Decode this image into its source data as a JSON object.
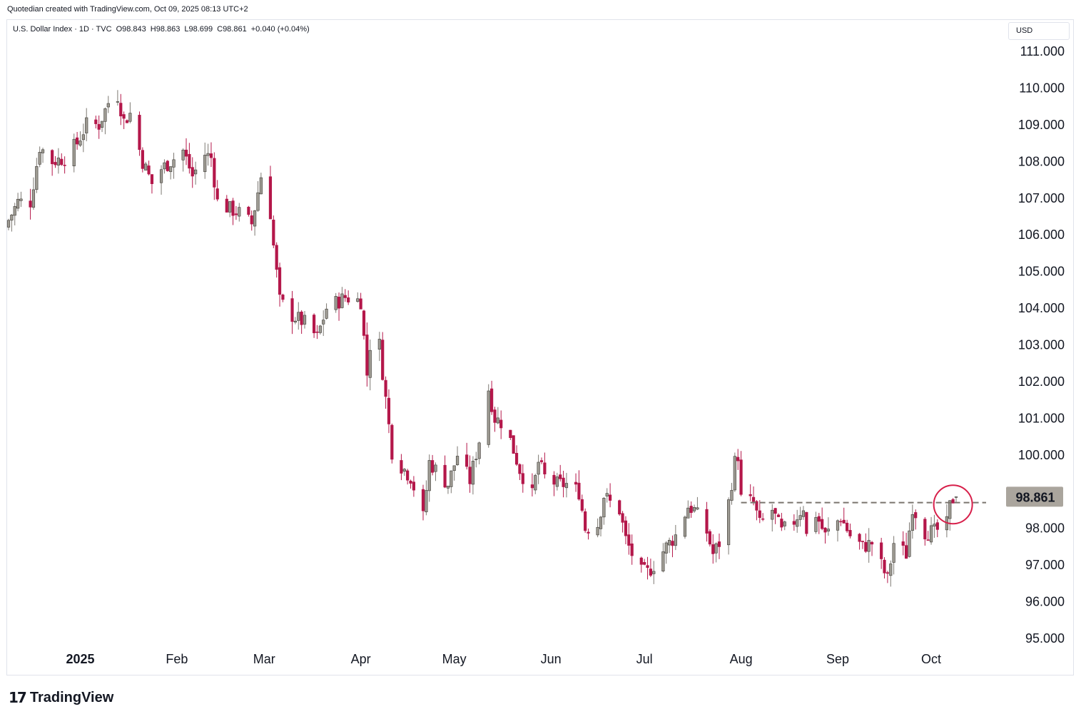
{
  "caption": "Quotedian created with TradingView.com, Oct 09, 2025 08:13 UTC+2",
  "legend": {
    "symbol": "U.S. Dollar Index · 1D · TVC",
    "open": "O98.843",
    "high": "H98.863",
    "low": "L98.699",
    "close": "C98.861",
    "change": "+0.040 (+0.04%)"
  },
  "currency": "USD",
  "logo": {
    "mark": "17",
    "name": "TradingView"
  },
  "colors": {
    "up": "#9e9b93",
    "down": "#b4174a",
    "annotation": "#d71f4a",
    "resistance": "#7a756e",
    "price_label_bg": "#aaa59d"
  },
  "chart_data": {
    "type": "candlestick",
    "y_ticks": [
      95,
      96,
      97,
      98,
      100,
      101,
      102,
      103,
      104,
      105,
      106,
      107,
      108,
      109,
      110,
      111
    ],
    "y_tick_labels": [
      "95.000",
      "96.000",
      "97.000",
      "98.000",
      "100.000",
      "101.000",
      "102.000",
      "103.000",
      "104.000",
      "105.000",
      "106.000",
      "107.000",
      "108.000",
      "109.000",
      "110.000",
      "111.000"
    ],
    "ylim": [
      94.4,
      111.75
    ],
    "x_labels": [
      {
        "label": "2025",
        "date": "2025-01-01",
        "bold": true
      },
      {
        "label": "Feb",
        "date": "2025-02-01"
      },
      {
        "label": "Mar",
        "date": "2025-03-01"
      },
      {
        "label": "Apr",
        "date": "2025-04-01"
      },
      {
        "label": "May",
        "date": "2025-05-01"
      },
      {
        "label": "Jun",
        "date": "2025-06-01"
      },
      {
        "label": "Jul",
        "date": "2025-07-01"
      },
      {
        "label": "Aug",
        "date": "2025-08-01"
      },
      {
        "label": "Sep",
        "date": "2025-09-01"
      },
      {
        "label": "Oct",
        "date": "2025-10-01"
      }
    ],
    "last_price": 98.861,
    "last_price_label": "98.861",
    "resistance_level": 98.7,
    "anchors": [
      {
        "date": "2024-12-09",
        "close": 106.4
      },
      {
        "date": "2024-12-12",
        "close": 106.9
      },
      {
        "date": "2024-12-16",
        "close": 106.9
      },
      {
        "date": "2024-12-19",
        "close": 108.4
      },
      {
        "date": "2024-12-23",
        "close": 108.0
      },
      {
        "date": "2024-12-27",
        "close": 108.1
      },
      {
        "date": "2024-12-31",
        "close": 108.5
      },
      {
        "date": "2025-01-03",
        "close": 109.0
      },
      {
        "date": "2025-01-07",
        "close": 109.0
      },
      {
        "date": "2025-01-10",
        "close": 109.6
      },
      {
        "date": "2025-01-13",
        "close": 109.8
      },
      {
        "date": "2025-01-15",
        "close": 109.1
      },
      {
        "date": "2025-01-17",
        "close": 109.3
      },
      {
        "date": "2025-01-21",
        "close": 108.0
      },
      {
        "date": "2025-01-24",
        "close": 107.4
      },
      {
        "date": "2025-01-27",
        "close": 107.8
      },
      {
        "date": "2025-01-30",
        "close": 108.0
      },
      {
        "date": "2025-02-03",
        "close": 108.3
      },
      {
        "date": "2025-02-06",
        "close": 107.6
      },
      {
        "date": "2025-02-10",
        "close": 108.2
      },
      {
        "date": "2025-02-12",
        "close": 108.1
      },
      {
        "date": "2025-02-14",
        "close": 106.9
      },
      {
        "date": "2025-02-18",
        "close": 106.7
      },
      {
        "date": "2025-02-21",
        "close": 106.6
      },
      {
        "date": "2025-02-25",
        "close": 106.3
      },
      {
        "date": "2025-02-28",
        "close": 107.6
      },
      {
        "date": "2025-03-03",
        "close": 106.6
      },
      {
        "date": "2025-03-04",
        "close": 105.7
      },
      {
        "date": "2025-03-06",
        "close": 104.2
      },
      {
        "date": "2025-03-10",
        "close": 103.8
      },
      {
        "date": "2025-03-14",
        "close": 103.6
      },
      {
        "date": "2025-03-18",
        "close": 103.2
      },
      {
        "date": "2025-03-21",
        "close": 104.0
      },
      {
        "date": "2025-03-25",
        "close": 104.2
      },
      {
        "date": "2025-03-27",
        "close": 104.3
      },
      {
        "date": "2025-04-01",
        "close": 104.2
      },
      {
        "date": "2025-04-03",
        "close": 102.2
      },
      {
        "date": "2025-04-04",
        "close": 103.0
      },
      {
        "date": "2025-04-07",
        "close": 103.0
      },
      {
        "date": "2025-04-10",
        "close": 100.8
      },
      {
        "date": "2025-04-11",
        "close": 100.1
      },
      {
        "date": "2025-04-14",
        "close": 99.7
      },
      {
        "date": "2025-04-17",
        "close": 99.4
      },
      {
        "date": "2025-04-21",
        "close": 98.3
      },
      {
        "date": "2025-04-23",
        "close": 99.8
      },
      {
        "date": "2025-04-25",
        "close": 99.6
      },
      {
        "date": "2025-04-29",
        "close": 99.2
      },
      {
        "date": "2025-05-02",
        "close": 100.0
      },
      {
        "date": "2025-05-06",
        "close": 99.3
      },
      {
        "date": "2025-05-09",
        "close": 100.4
      },
      {
        "date": "2025-05-12",
        "close": 101.8
      },
      {
        "date": "2025-05-14",
        "close": 101.0
      },
      {
        "date": "2025-05-16",
        "close": 100.9
      },
      {
        "date": "2025-05-19",
        "close": 100.4
      },
      {
        "date": "2025-05-22",
        "close": 99.6
      },
      {
        "date": "2025-05-26",
        "close": 98.9
      },
      {
        "date": "2025-05-28",
        "close": 99.8
      },
      {
        "date": "2025-05-30",
        "close": 99.4
      },
      {
        "date": "2025-06-03",
        "close": 99.2
      },
      {
        "date": "2025-06-06",
        "close": 99.2
      },
      {
        "date": "2025-06-10",
        "close": 99.0
      },
      {
        "date": "2025-06-12",
        "close": 98.0
      },
      {
        "date": "2025-06-16",
        "close": 98.1
      },
      {
        "date": "2025-06-18",
        "close": 98.9
      },
      {
        "date": "2025-06-20",
        "close": 98.7
      },
      {
        "date": "2025-06-23",
        "close": 98.5
      },
      {
        "date": "2025-06-25",
        "close": 97.7
      },
      {
        "date": "2025-06-27",
        "close": 97.3
      },
      {
        "date": "2025-06-30",
        "close": 96.8
      },
      {
        "date": "2025-07-02",
        "close": 96.8
      },
      {
        "date": "2025-07-04",
        "close": 97.0
      },
      {
        "date": "2025-07-08",
        "close": 97.5
      },
      {
        "date": "2025-07-11",
        "close": 97.8
      },
      {
        "date": "2025-07-15",
        "close": 98.6
      },
      {
        "date": "2025-07-17",
        "close": 98.5
      },
      {
        "date": "2025-07-21",
        "close": 97.9
      },
      {
        "date": "2025-07-23",
        "close": 97.3
      },
      {
        "date": "2025-07-25",
        "close": 97.6
      },
      {
        "date": "2025-07-28",
        "close": 98.7
      },
      {
        "date": "2025-07-30",
        "close": 99.8
      },
      {
        "date": "2025-07-31",
        "close": 100.0
      },
      {
        "date": "2025-08-01",
        "close": 98.8
      },
      {
        "date": "2025-08-05",
        "close": 98.7
      },
      {
        "date": "2025-08-07",
        "close": 98.1
      },
      {
        "date": "2025-08-11",
        "close": 98.5
      },
      {
        "date": "2025-08-14",
        "close": 97.9
      },
      {
        "date": "2025-08-18",
        "close": 98.2
      },
      {
        "date": "2025-08-21",
        "close": 98.6
      },
      {
        "date": "2025-08-22",
        "close": 97.8
      },
      {
        "date": "2025-08-25",
        "close": 98.4
      },
      {
        "date": "2025-08-28",
        "close": 97.8
      },
      {
        "date": "2025-09-02",
        "close": 98.3
      },
      {
        "date": "2025-09-05",
        "close": 97.8
      },
      {
        "date": "2025-09-09",
        "close": 97.5
      },
      {
        "date": "2025-09-12",
        "close": 97.6
      },
      {
        "date": "2025-09-16",
        "close": 96.8
      },
      {
        "date": "2025-09-17",
        "close": 96.6
      },
      {
        "date": "2025-09-19",
        "close": 97.6
      },
      {
        "date": "2025-09-23",
        "close": 97.3
      },
      {
        "date": "2025-09-25",
        "close": 98.6
      },
      {
        "date": "2025-09-29",
        "close": 97.9
      },
      {
        "date": "2025-10-02",
        "close": 97.9
      },
      {
        "date": "2025-10-06",
        "close": 98.1
      },
      {
        "date": "2025-10-07",
        "close": 98.6
      },
      {
        "date": "2025-10-08",
        "close": 98.8
      },
      {
        "date": "2025-10-09",
        "close": 98.861
      }
    ]
  }
}
